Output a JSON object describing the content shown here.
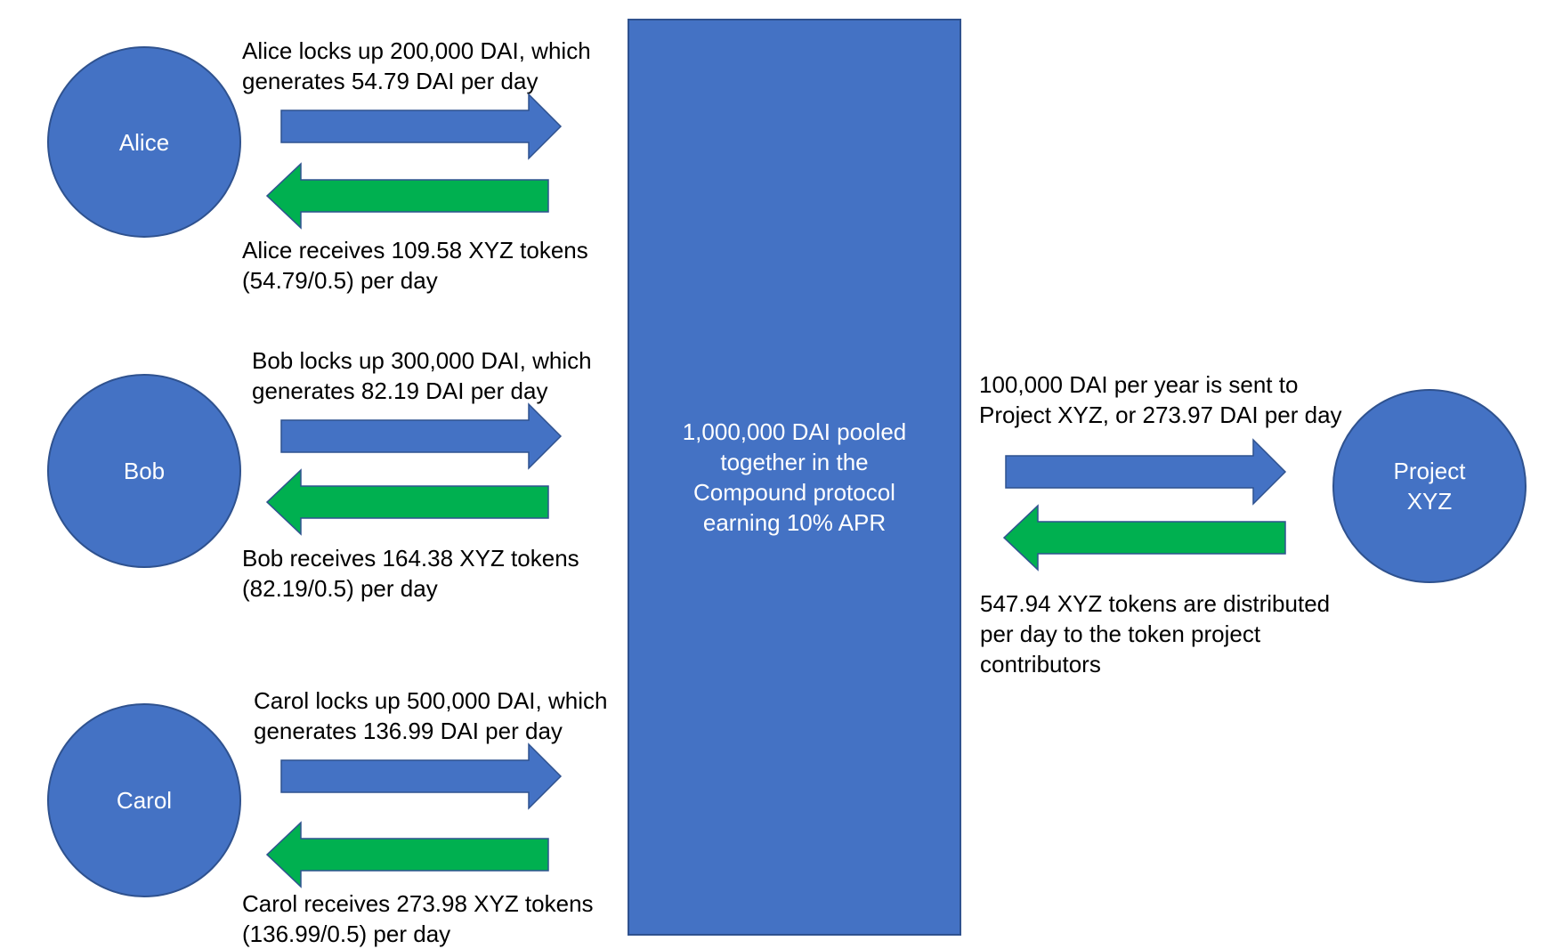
{
  "participants": [
    {
      "name": "Alice",
      "lock_text": "Alice locks up 200,000 DAI, which\ngenerates 54.79 DAI per day",
      "receive_text": "Alice receives 109.58 XYZ tokens\n(54.79/0.5) per day"
    },
    {
      "name": "Bob",
      "lock_text": "Bob locks up 300,000 DAI, which\ngenerates 82.19 DAI per day",
      "receive_text": "Bob receives 164.38 XYZ tokens\n(82.19/0.5) per day"
    },
    {
      "name": "Carol",
      "lock_text": "Carol locks up 500,000 DAI, which\ngenerates 136.99 DAI per day",
      "receive_text": "Carol receives 273.98 XYZ tokens\n(136.99/0.5) per day"
    }
  ],
  "pool": {
    "text": "1,000,000 DAI pooled together in the Compound protocol earning 10% APR"
  },
  "project": {
    "name": "Project XYZ",
    "sent_text": "100,000 DAI per year is sent to\nProject XYZ, or 273.97 DAI per day",
    "distributed_text": "547.94 XYZ tokens are distributed\nper day to the token project\ncontributors"
  },
  "colors": {
    "node_fill": "#4472c4",
    "node_border": "#2f528f",
    "dai_arrow": "#4472c4",
    "token_arrow": "#00b050"
  }
}
